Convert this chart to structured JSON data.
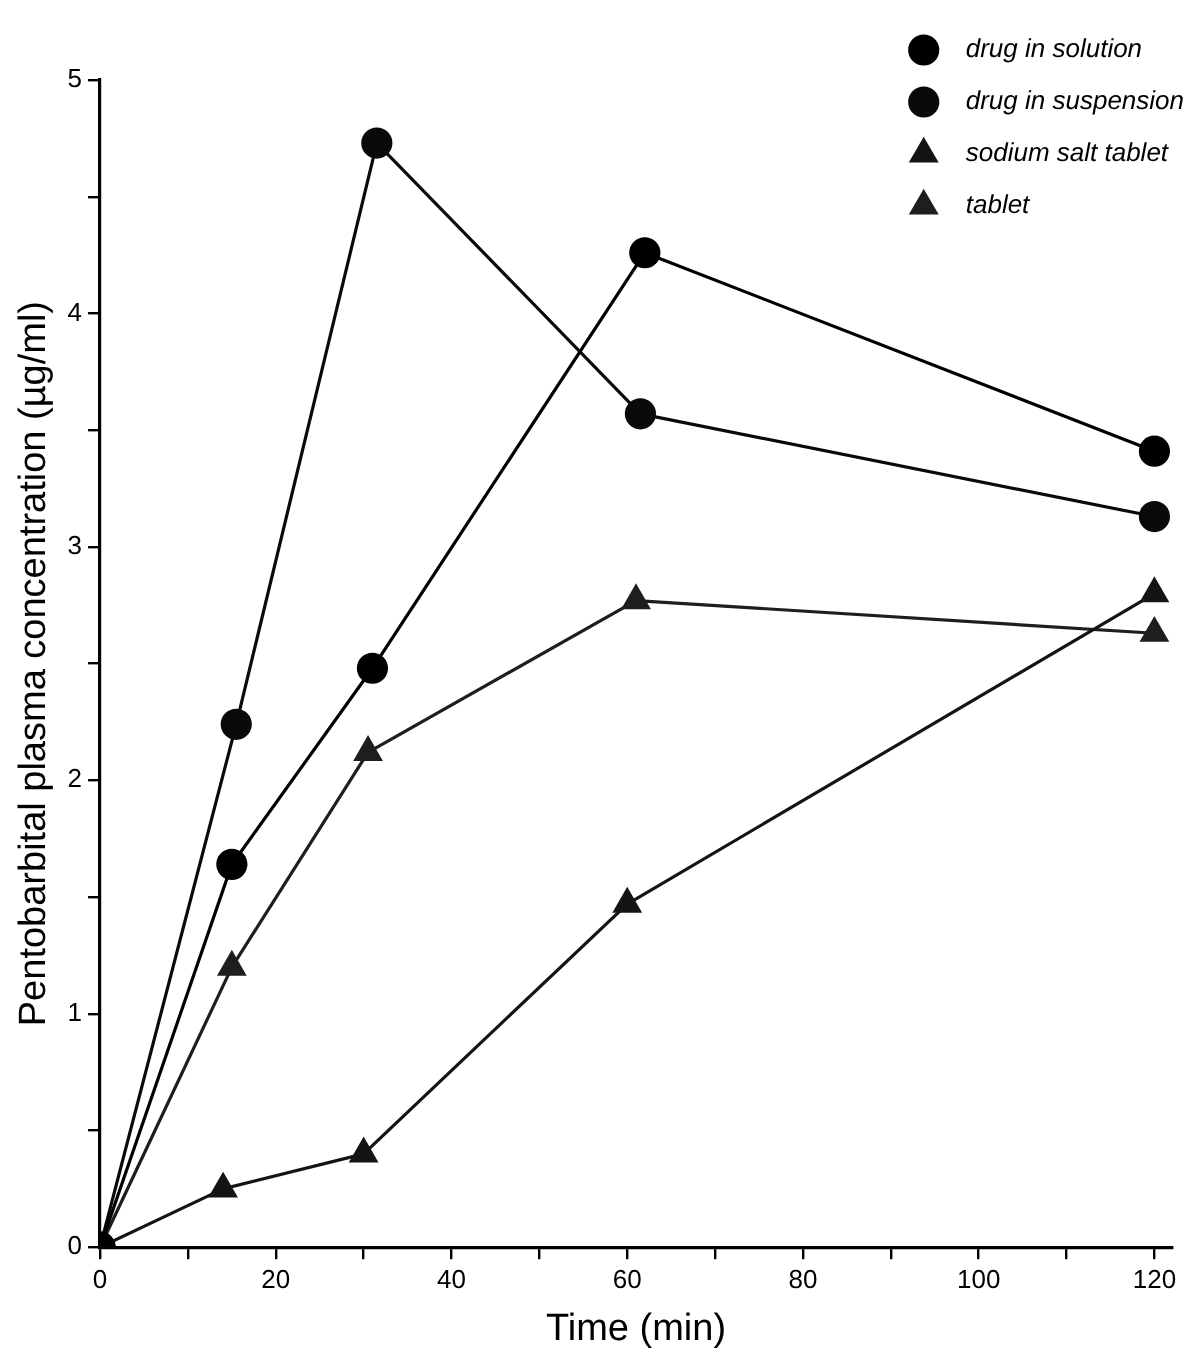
{
  "chart_data": {
    "type": "line",
    "xlabel": "Time (min)",
    "ylabel": "Pentobarbital plasma concentration (µg/ml)",
    "xlim": [
      0,
      122
    ],
    "xticks": [
      0,
      {
        "value": 10,
        "label": null
      },
      20,
      {
        "value": 30,
        "label": null
      },
      40,
      {
        "value": 50,
        "label": null
      },
      60,
      {
        "value": 70,
        "label": null
      },
      80,
      {
        "value": 90,
        "label": null
      },
      100,
      {
        "value": 110,
        "label": null
      },
      120
    ],
    "ylim": [
      0,
      5
    ],
    "yticks": [
      0,
      {
        "value": 0.5,
        "label": null
      },
      1,
      {
        "value": 1.5,
        "label": null
      },
      2,
      {
        "value": 2.5,
        "label": null
      },
      3,
      {
        "value": 3.5,
        "label": null
      },
      4,
      {
        "value": 4.5,
        "label": null
      },
      5
    ],
    "grid": false,
    "legend": "top right",
    "line_style": "solid",
    "series": [
      {
        "name": "drug in solution",
        "color": "#000000",
        "marker": "circle",
        "x": [
          0,
          15,
          31,
          62,
          120
        ],
        "values": [
          0,
          1.64,
          2.48,
          4.26,
          3.41
        ]
      },
      {
        "name": "drug in suspension",
        "color": "#0a0a0a",
        "marker": "circle",
        "x": [
          0,
          15.5,
          31.5,
          61.5,
          120
        ],
        "values": [
          0,
          2.24,
          4.73,
          3.57,
          3.13
        ]
      },
      {
        "name": "sodium salt tablet",
        "color": "#141414",
        "marker": "triangle",
        "x": [
          0,
          14,
          30,
          60,
          120
        ],
        "values": [
          0,
          0.25,
          0.4,
          1.47,
          2.8
        ]
      },
      {
        "name": "tablet",
        "color": "#1e1e1e",
        "marker": "triangle",
        "x": [
          0,
          15,
          30.5,
          61,
          120
        ],
        "values": [
          0,
          1.2,
          2.12,
          2.77,
          2.63
        ]
      }
    ]
  }
}
